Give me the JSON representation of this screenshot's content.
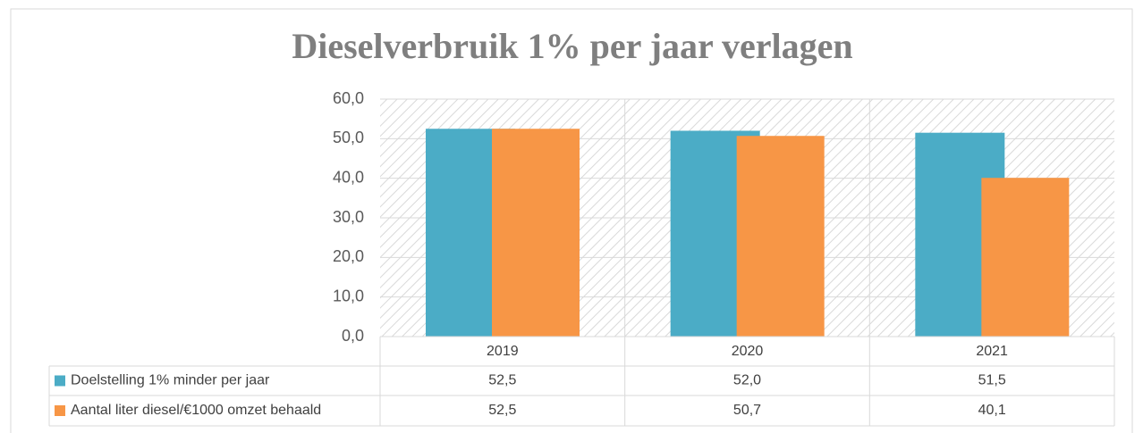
{
  "chart_data": {
    "type": "bar",
    "title": "Dieselverbruik 1% per jaar verlagen",
    "categories": [
      "2019",
      "2020",
      "2021"
    ],
    "series": [
      {
        "name": "Doelstelling 1% minder per jaar",
        "color": "#4bacc6",
        "values": [
          52.5,
          52.0,
          51.5
        ],
        "value_labels": [
          "52,5",
          "52,0",
          "51,5"
        ]
      },
      {
        "name": "Aantal liter diesel/€1000 omzet behaald",
        "color": "#f79646",
        "values": [
          52.5,
          50.7,
          40.1
        ],
        "value_labels": [
          "52,5",
          "50,7",
          "40,1"
        ]
      }
    ],
    "ylim": [
      0,
      60
    ],
    "yticks": [
      {
        "value": 0,
        "label": "0,0"
      },
      {
        "value": 10,
        "label": "10,0"
      },
      {
        "value": 20,
        "label": "20,0"
      },
      {
        "value": 30,
        "label": "30,0"
      },
      {
        "value": 40,
        "label": "40,0"
      },
      {
        "value": 50,
        "label": "50,0"
      },
      {
        "value": 60,
        "label": "60,0"
      }
    ],
    "grid": true
  }
}
